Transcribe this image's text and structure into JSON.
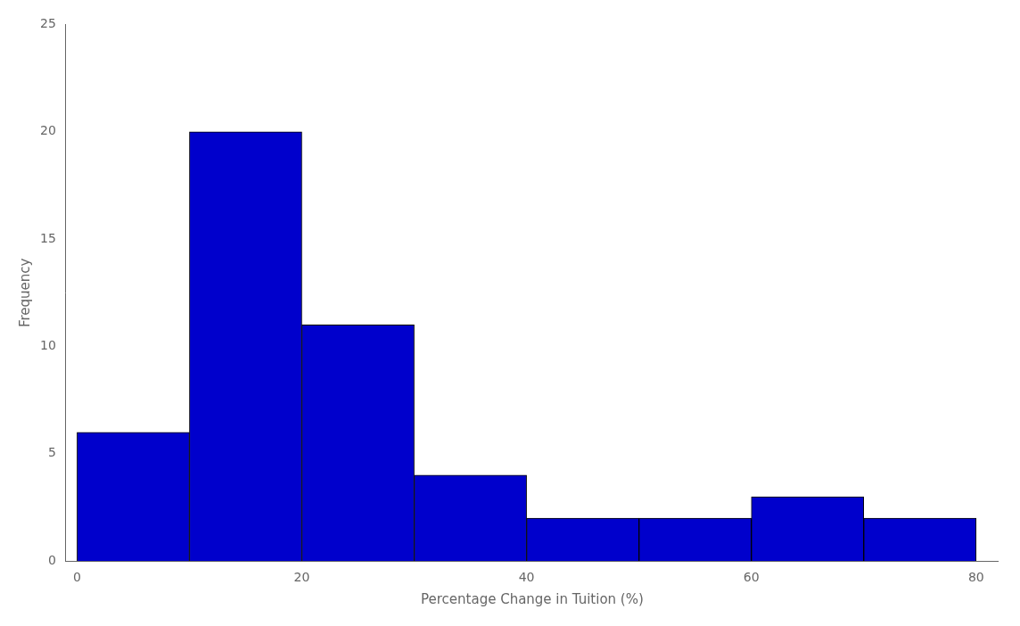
{
  "chart_data": {
    "type": "histogram",
    "bins": [
      0,
      10,
      20,
      30,
      40,
      50,
      60,
      70,
      80
    ],
    "values": [
      6,
      20,
      11,
      4,
      2,
      2,
      3,
      2
    ],
    "color": "#0000CC",
    "xlabel": "Percentage Change in Tuition (%)",
    "ylabel": "Frequency",
    "xlim": [
      -1,
      82
    ],
    "ylim": [
      0,
      25
    ],
    "xticks": [
      0,
      20,
      40,
      60,
      80
    ],
    "yticks": [
      0,
      5,
      10,
      15,
      20,
      25
    ],
    "grid": false
  }
}
